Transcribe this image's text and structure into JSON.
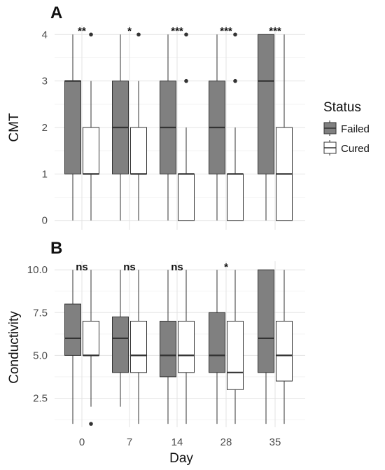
{
  "chart_data": [
    {
      "type": "boxplot",
      "panel_label": "A",
      "xlabel": "",
      "ylabel": "CMT",
      "ylim": [
        -0.2,
        4.2
      ],
      "yticks": [
        0,
        1,
        2,
        3,
        4
      ],
      "categories": [
        "0",
        "7",
        "14",
        "28",
        "35"
      ],
      "series": [
        {
          "name": "Failed",
          "boxes": [
            {
              "min": 0,
              "q1": 1,
              "median": 3,
              "q3": 3,
              "max": 4,
              "outliers": []
            },
            {
              "min": 0,
              "q1": 1,
              "median": 2,
              "q3": 3,
              "max": 4,
              "outliers": []
            },
            {
              "min": 0,
              "q1": 1,
              "median": 2,
              "q3": 3,
              "max": 4,
              "outliers": []
            },
            {
              "min": 0,
              "q1": 1,
              "median": 2,
              "q3": 3,
              "max": 4,
              "outliers": []
            },
            {
              "min": 0,
              "q1": 1,
              "median": 3,
              "q3": 4,
              "max": 4,
              "outliers": []
            }
          ]
        },
        {
          "name": "Cured",
          "boxes": [
            {
              "min": 0,
              "q1": 1,
              "median": 1,
              "q3": 2,
              "max": 3,
              "outliers": [
                4
              ]
            },
            {
              "min": 0,
              "q1": 1,
              "median": 1,
              "q3": 2,
              "max": 3,
              "outliers": [
                4
              ]
            },
            {
              "min": 0,
              "q1": 0,
              "median": 1,
              "q3": 1,
              "max": 2,
              "outliers": [
                3,
                4
              ]
            },
            {
              "min": 0,
              "q1": 0,
              "median": 1,
              "q3": 1,
              "max": 2,
              "outliers": [
                3,
                4
              ]
            },
            {
              "min": 0,
              "q1": 0,
              "median": 1,
              "q3": 2,
              "max": 4,
              "outliers": []
            }
          ]
        }
      ],
      "significance": [
        "**",
        "*",
        "***",
        "***",
        "***"
      ]
    },
    {
      "type": "boxplot",
      "panel_label": "B",
      "xlabel": "Day",
      "ylabel": "Conductivity",
      "ylim": [
        0.8,
        10.5
      ],
      "yticks": [
        2.5,
        5.0,
        7.5,
        10.0
      ],
      "ytick_labels": [
        "2.5",
        "5.0",
        "7.5",
        "10.0"
      ],
      "categories": [
        "0",
        "7",
        "14",
        "28",
        "35"
      ],
      "series": [
        {
          "name": "Failed",
          "boxes": [
            {
              "min": 1,
              "q1": 5,
              "median": 6,
              "q3": 8,
              "max": 10,
              "outliers": []
            },
            {
              "min": 2,
              "q1": 4,
              "median": 6,
              "q3": 7.25,
              "max": 10,
              "outliers": []
            },
            {
              "min": 1,
              "q1": 3.75,
              "median": 5,
              "q3": 7,
              "max": 10,
              "outliers": []
            },
            {
              "min": 1,
              "q1": 4,
              "median": 5,
              "q3": 7.5,
              "max": 10,
              "outliers": []
            },
            {
              "min": 1,
              "q1": 4,
              "median": 6,
              "q3": 10,
              "max": 10,
              "outliers": []
            }
          ]
        },
        {
          "name": "Cured",
          "boxes": [
            {
              "min": 2,
              "q1": 5,
              "median": 5,
              "q3": 7,
              "max": 10,
              "outliers": [
                1
              ]
            },
            {
              "min": 1,
              "q1": 4,
              "median": 5,
              "q3": 7,
              "max": 10,
              "outliers": []
            },
            {
              "min": 1,
              "q1": 4,
              "median": 5,
              "q3": 7,
              "max": 10,
              "outliers": []
            },
            {
              "min": 1,
              "q1": 3,
              "median": 4,
              "q3": 7,
              "max": 10,
              "outliers": []
            },
            {
              "min": 1,
              "q1": 3.5,
              "median": 5,
              "q3": 7,
              "max": 10,
              "outliers": []
            }
          ]
        }
      ],
      "significance": [
        "ns",
        "ns",
        "ns",
        "*",
        ""
      ]
    }
  ],
  "legend": {
    "title": "Status",
    "items": [
      {
        "label": "Failed",
        "fill": "#808080"
      },
      {
        "label": "Cured",
        "fill": "#ffffff"
      }
    ]
  },
  "colors": {
    "failed": "#808080",
    "cured": "#ffffff",
    "outline": "#333333",
    "grid": "#e3e3e3"
  }
}
